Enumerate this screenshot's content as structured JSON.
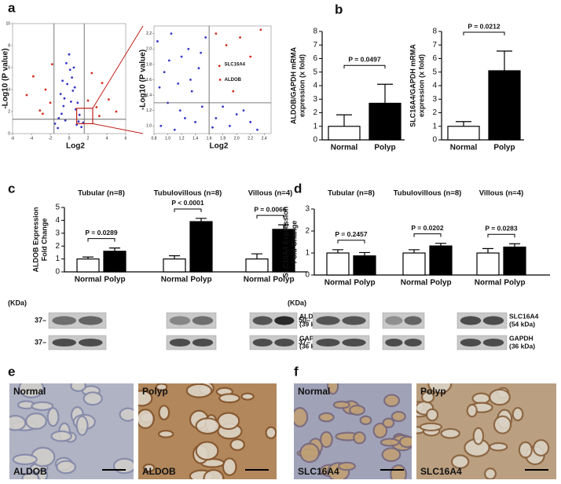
{
  "panel_labels": [
    "a",
    "b",
    "c",
    "d",
    "e",
    "f"
  ],
  "chart_data": [
    {
      "type": "scatter",
      "xlabel": "Log2",
      "ylabel": "-Log10 (P value)",
      "xlim": [
        -6,
        6
      ],
      "ylim": [
        0,
        10
      ],
      "xticks": [
        -6,
        -4,
        -2,
        0,
        2,
        4,
        6
      ],
      "yticks": [
        0,
        2,
        4,
        6,
        8,
        10
      ],
      "vlines": [
        -1.6,
        1.6
      ],
      "hlines": [
        1.3
      ],
      "zoom_box": {
        "xlim": [
          0.8,
          2.5
        ],
        "ylim": [
          0.9,
          2.3
        ]
      },
      "series": [
        {
          "color": "#3535c8",
          "x": [
            -1.2,
            -0.8,
            -0.5,
            -0.2,
            0.1,
            0.4,
            0.7,
            1.0,
            1.3,
            -1.5,
            -0.9,
            -0.3,
            0.3,
            0.9,
            1.5,
            -0.6,
            0.0,
            0.6,
            -1.1,
            1.1,
            -0.4,
            0.2,
            0.8,
            -0.7,
            0.5
          ],
          "y": [
            0.5,
            1.8,
            3.2,
            4.5,
            5.8,
            3.9,
            2.2,
            1.1,
            0.6,
            0.9,
            3.6,
            6.4,
            5.1,
            2.8,
            1.0,
            2.5,
            7.2,
            4.2,
            1.4,
            1.7,
            1.2,
            2.9,
            0.8,
            4.8,
            6.0
          ]
        },
        {
          "color": "#d62a1e",
          "x": [
            -4.5,
            -3.8,
            -3.1,
            -2.5,
            -2.0,
            -1.8,
            2.0,
            2.4,
            2.9,
            3.5,
            4.2,
            5.0,
            -2.8,
            3.2
          ],
          "y": [
            3.5,
            5.2,
            2.1,
            4.0,
            2.8,
            6.3,
            3.0,
            5.5,
            2.4,
            4.6,
            3.1,
            2.0,
            1.8,
            1.6
          ]
        }
      ]
    },
    {
      "type": "scatter",
      "xlabel": "Log2",
      "ylabel": "-Log10 (P value)",
      "xlim": [
        0.8,
        2.5
      ],
      "ylim": [
        0.9,
        2.3
      ],
      "xticks": [
        0.8,
        {
          "value": 1,
          "label": "1.0"
        },
        1.2,
        1.4,
        1.6,
        1.8,
        {
          "value": 2,
          "label": "2.0"
        },
        2.2,
        2.4
      ],
      "yticks": [
        {
          "value": 1,
          "label": "1.0"
        },
        1.2,
        1.4,
        1.6,
        1.8,
        {
          "value": 2,
          "label": "2.0"
        },
        2.2
      ],
      "vlines": [
        1.6
      ],
      "hlines": [
        1.3
      ],
      "series": [
        {
          "color": "#3535c8",
          "x": [
            0.85,
            0.9,
            0.95,
            1.0,
            1.05,
            1.1,
            1.15,
            1.2,
            1.25,
            1.3,
            1.35,
            1.4,
            1.45,
            1.5,
            1.55,
            0.88,
            1.02,
            1.18,
            1.33,
            1.48,
            1.7,
            1.9,
            2.1,
            2.3,
            1.8,
            2.0,
            2.2,
            1.65
          ],
          "y": [
            2.1,
            1.0,
            1.7,
            1.3,
            2.2,
            0.95,
            1.55,
            1.9,
            1.1,
            2.0,
            1.45,
            1.05,
            1.75,
            1.25,
            2.15,
            1.5,
            1.85,
            1.2,
            1.6,
            1.95,
            1.1,
            1.0,
            1.2,
            0.95,
            1.25,
            1.15,
            1.05,
            0.98
          ]
        },
        {
          "color": "#d62a1e",
          "x": [
            1.7,
            1.75,
            1.76,
            1.85,
            1.95,
            2.05,
            2.2,
            2.35
          ],
          "y": [
            2.2,
            1.78,
            1.6,
            2.05,
            1.45,
            2.15,
            1.9,
            2.25
          ]
        }
      ],
      "annotations": [
        {
          "text": "SLC16A4",
          "x": 1.8,
          "y": 1.8
        },
        {
          "text": "ALDOB",
          "x": 1.8,
          "y": 1.6
        }
      ]
    },
    {
      "type": "bar",
      "ylabel": [
        "ALDOB/GAPDH mRMA",
        "expression (x fold)"
      ],
      "ylim": [
        0,
        8
      ],
      "yticks": [
        0,
        1,
        2,
        3,
        4,
        5,
        6,
        7,
        8
      ],
      "colors": [
        "#ffffff",
        "#000000"
      ],
      "groups": [
        {
          "categories": [
            "Normal",
            "Polyp"
          ],
          "values": [
            1.0,
            2.7
          ],
          "errors": [
            0.85,
            1.4
          ],
          "annotation": "P = 0.0497"
        }
      ]
    },
    {
      "type": "bar",
      "ylabel": [
        "SLC16A4/GAPDH mRMA",
        "expression (x fold)"
      ],
      "ylim": [
        0,
        8
      ],
      "yticks": [
        0,
        1,
        2,
        3,
        4,
        5,
        6,
        7,
        8
      ],
      "colors": [
        "#ffffff",
        "#000000"
      ],
      "groups": [
        {
          "categories": [
            "Normal",
            "Polyp"
          ],
          "values": [
            1.0,
            5.1
          ],
          "errors": [
            0.35,
            1.45
          ],
          "annotation": "P = 0.0212"
        }
      ]
    },
    {
      "type": "bar",
      "ylabel": [
        "ALDOB Expression",
        "Fold Change"
      ],
      "ylim": [
        0,
        5
      ],
      "yticks": [
        0,
        1,
        2,
        3,
        4,
        5
      ],
      "colors": [
        "#ffffff",
        "#000000"
      ],
      "groups": [
        {
          "title": "Tubular (n=8)",
          "categories": [
            "Normal",
            "Polyp"
          ],
          "values": [
            1.0,
            1.6
          ],
          "errors": [
            0.15,
            0.25
          ],
          "annotation": "P = 0.0289"
        },
        {
          "title": "Tubulovillous (n=8)",
          "categories": [
            "Normal",
            "Polyp"
          ],
          "values": [
            1.0,
            3.9
          ],
          "errors": [
            0.25,
            0.25
          ],
          "annotation": "P < 0.0001"
        },
        {
          "title": "Villous (n=4)",
          "categories": [
            "Normal",
            "Polyp"
          ],
          "values": [
            1.0,
            3.3
          ],
          "errors": [
            0.4,
            0.35
          ],
          "annotation": "P = 0.0066"
        }
      ]
    },
    {
      "type": "bar",
      "ylabel": [
        "SLC16A4 Expression",
        "Fold Change"
      ],
      "ylim": [
        0,
        3
      ],
      "yticks": [
        0,
        1,
        2,
        3
      ],
      "colors": [
        "#ffffff",
        "#000000"
      ],
      "groups": [
        {
          "title": "Tubular (n=8)",
          "categories": [
            "Normal",
            "Polyp"
          ],
          "values": [
            1.0,
            0.87
          ],
          "errors": [
            0.15,
            0.15
          ],
          "annotation": "P = 0.2457"
        },
        {
          "title": "Tubulovillous (n=8)",
          "categories": [
            "Normal",
            "Polyp"
          ],
          "values": [
            1.0,
            1.32
          ],
          "errors": [
            0.15,
            0.12
          ],
          "annotation": "P = 0.0202"
        },
        {
          "title": "Villous (n=4)",
          "categories": [
            "Normal",
            "Polyp"
          ],
          "values": [
            1.0,
            1.27
          ],
          "errors": [
            0.2,
            0.15
          ],
          "annotation": "P = 0.0283"
        }
      ]
    }
  ],
  "blots": [
    {
      "kda_label": "(KDa)",
      "markers": [
        "37–",
        "37–"
      ],
      "rows": [
        {
          "label": "ALDOB",
          "sublabel": "(39 kDa)"
        },
        {
          "label": "GAPDH",
          "sublabel": "(36 kDa)"
        }
      ]
    },
    {
      "kda_label": "(KDa)",
      "markers": [
        "50–",
        "37–"
      ],
      "rows": [
        {
          "label": "SLC16A4",
          "sublabel": "(54 kDa)"
        },
        {
          "label": "GAPDH",
          "sublabel": "(36 kDa)"
        }
      ]
    }
  ],
  "histology": [
    {
      "tissue": "Normal",
      "marker": "ALDOB"
    },
    {
      "tissue": "Polyp",
      "marker": "ALDOB"
    },
    {
      "tissue": "Normal",
      "marker": "SLC16A4"
    },
    {
      "tissue": "Polyp",
      "marker": "SLC16A4"
    }
  ]
}
